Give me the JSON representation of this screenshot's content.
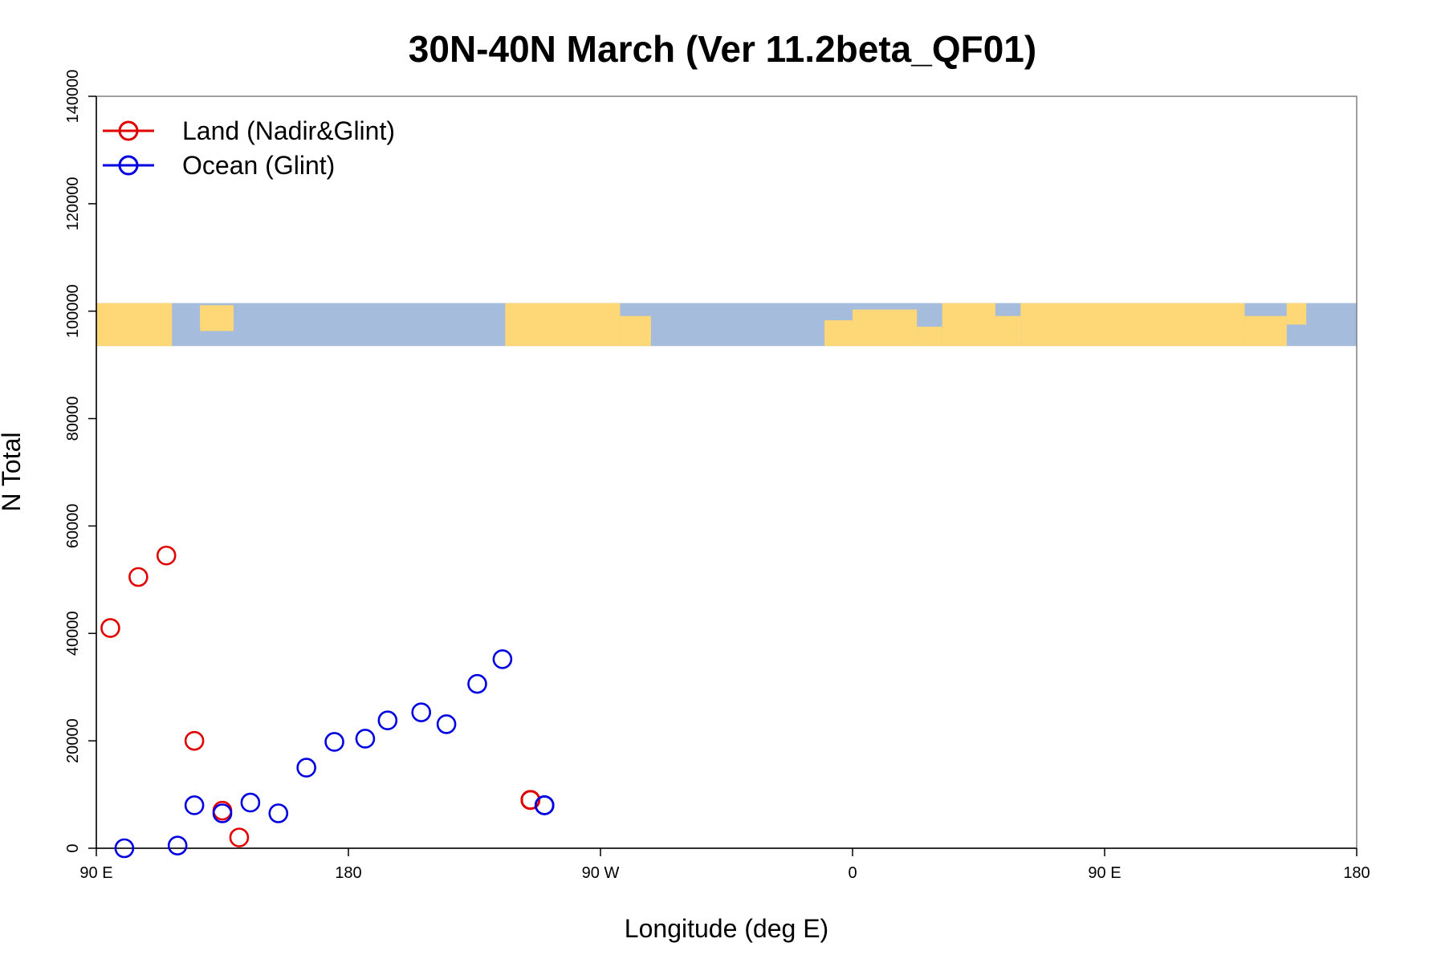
{
  "chart_data": {
    "type": "scatter",
    "title": "30N-40N March (Ver 11.2beta_QF01)",
    "xlabel": "Longitude (deg E)",
    "ylabel": "N Total",
    "x_axis": {
      "range": [
        90,
        540
      ],
      "ticks": [
        90,
        180,
        270,
        360,
        450,
        540
      ],
      "tick_labels": [
        "90 E",
        "180",
        "90 W",
        "0",
        "90 E",
        "180"
      ]
    },
    "y_axis": {
      "range": [
        0,
        140000
      ],
      "ticks": [
        0,
        20000,
        40000,
        60000,
        80000,
        100000,
        120000,
        140000
      ],
      "tick_labels": [
        "0",
        "20000",
        "40000",
        "60000",
        "80000",
        "100000",
        "120000",
        "140000"
      ]
    },
    "grid": false,
    "legend": {
      "position": "top-left"
    },
    "map_band": {
      "y_range": [
        93500,
        101500
      ],
      "ocean_color": "#a6bcdc",
      "land_color": "#fed776"
    },
    "series": [
      {
        "name": "Land (Nadir&Glint)",
        "color": "#e00000",
        "points": [
          [
            95,
            41000
          ],
          [
            105,
            50500
          ],
          [
            115,
            54500
          ],
          [
            125,
            20000
          ],
          [
            135,
            7000
          ],
          [
            141,
            2000
          ],
          [
            245,
            9000
          ],
          [
            245,
            9000
          ],
          [
            245,
            9000
          ],
          [
            245,
            9000
          ],
          [
            245,
            9000
          ],
          [
            245,
            9000
          ],
          [
            245,
            9000
          ],
          [
            245,
            9000
          ],
          [
            245,
            9000
          ],
          [
            245,
            9000
          ],
          [
            245,
            9000
          ],
          [
            245,
            9000
          ]
        ]
      },
      {
        "name": "Ocean (Glint)",
        "color": "#0000e0",
        "points": [
          [
            100,
            0
          ],
          [
            119,
            500
          ],
          [
            125,
            8000
          ],
          [
            135,
            6500
          ],
          [
            145,
            8500
          ],
          [
            155,
            6500
          ],
          [
            165,
            15000
          ],
          [
            175,
            19800
          ],
          [
            186,
            20400
          ],
          [
            194,
            23800
          ],
          [
            206,
            25300
          ],
          [
            215,
            23100
          ],
          [
            226,
            30600
          ],
          [
            235,
            35200
          ],
          [
            250,
            8000
          ],
          [
            250,
            8000
          ],
          [
            250,
            8000
          ],
          [
            250,
            8000
          ]
        ]
      }
    ]
  }
}
